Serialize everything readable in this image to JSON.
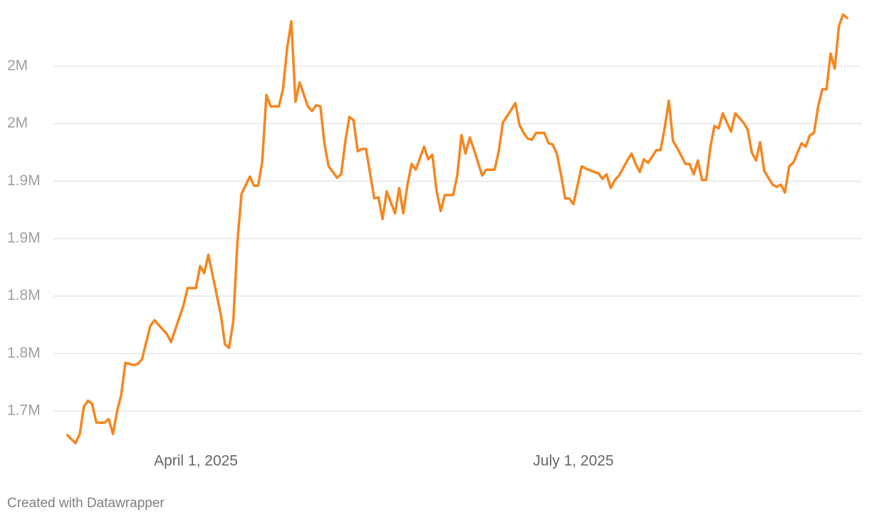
{
  "chart_data": {
    "type": "line",
    "color": "#f6861f",
    "grid": true,
    "credit": "Created with Datawrapper",
    "xlim": [
      "2025-03-01",
      "2025-09-05"
    ],
    "xticks": [
      {
        "value": "2025-04-01",
        "label": "April 1, 2025"
      },
      {
        "value": "2025-07-01",
        "label": "July 1, 2025"
      }
    ],
    "ylim": [
      1665000,
      2050000
    ],
    "yticks": [
      {
        "value": 1700000,
        "label": "1.7M"
      },
      {
        "value": 1750000,
        "label": "1.8M"
      },
      {
        "value": 1800000,
        "label": "1.8M"
      },
      {
        "value": 1850000,
        "label": "1.9M"
      },
      {
        "value": 1900000,
        "label": "1.9M"
      },
      {
        "value": 1950000,
        "label": "2M"
      },
      {
        "value": 2000000,
        "label": "2M"
      }
    ],
    "x": [
      "2025-03-01",
      "2025-03-03",
      "2025-03-04",
      "2025-03-05",
      "2025-03-06",
      "2025-03-07",
      "2025-03-08",
      "2025-03-10",
      "2025-03-11",
      "2025-03-12",
      "2025-03-13",
      "2025-03-14",
      "2025-03-15",
      "2025-03-17",
      "2025-03-18",
      "2025-03-19",
      "2025-03-21",
      "2025-03-22",
      "2025-03-25",
      "2025-03-26",
      "2025-03-29",
      "2025-03-30",
      "2025-04-01",
      "2025-04-02",
      "2025-04-03",
      "2025-04-04",
      "2025-04-07",
      "2025-04-08",
      "2025-04-09",
      "2025-04-10",
      "2025-04-11",
      "2025-04-12",
      "2025-04-14",
      "2025-04-15",
      "2025-04-16",
      "2025-04-17",
      "2025-04-18",
      "2025-04-19",
      "2025-04-21",
      "2025-04-22",
      "2025-04-23",
      "2025-04-24",
      "2025-04-25",
      "2025-04-26",
      "2025-04-28",
      "2025-04-29",
      "2025-04-30",
      "2025-05-01",
      "2025-05-02",
      "2025-05-03",
      "2025-05-05",
      "2025-05-06",
      "2025-05-07",
      "2025-05-08",
      "2025-05-09",
      "2025-05-10",
      "2025-05-11",
      "2025-05-12",
      "2025-05-14",
      "2025-05-15",
      "2025-05-16",
      "2025-05-17",
      "2025-05-19",
      "2025-05-20",
      "2025-05-21",
      "2025-05-22",
      "2025-05-23",
      "2025-05-24",
      "2025-05-26",
      "2025-05-27",
      "2025-05-28",
      "2025-05-29",
      "2025-05-30",
      "2025-05-31",
      "2025-06-02",
      "2025-06-03",
      "2025-06-04",
      "2025-06-05",
      "2025-06-06",
      "2025-06-07",
      "2025-06-09",
      "2025-06-10",
      "2025-06-12",
      "2025-06-13",
      "2025-06-14",
      "2025-06-16",
      "2025-06-17",
      "2025-06-18",
      "2025-06-19",
      "2025-06-20",
      "2025-06-21",
      "2025-06-22",
      "2025-06-24",
      "2025-06-25",
      "2025-06-26",
      "2025-06-27",
      "2025-06-28",
      "2025-06-29",
      "2025-06-30",
      "2025-07-01",
      "2025-07-03",
      "2025-07-04",
      "2025-07-06",
      "2025-07-07",
      "2025-07-08",
      "2025-07-09",
      "2025-07-10",
      "2025-07-11",
      "2025-07-12",
      "2025-07-14",
      "2025-07-15",
      "2025-07-16",
      "2025-07-17",
      "2025-07-18",
      "2025-07-19",
      "2025-07-21",
      "2025-07-22",
      "2025-07-23",
      "2025-07-24",
      "2025-07-25",
      "2025-07-26",
      "2025-07-28",
      "2025-07-29",
      "2025-07-30",
      "2025-07-31",
      "2025-08-01",
      "2025-08-02",
      "2025-08-03",
      "2025-08-04",
      "2025-08-05",
      "2025-08-06",
      "2025-08-08",
      "2025-08-09",
      "2025-08-11",
      "2025-08-12",
      "2025-08-13",
      "2025-08-14",
      "2025-08-15",
      "2025-08-16",
      "2025-08-18",
      "2025-08-19",
      "2025-08-20",
      "2025-08-21",
      "2025-08-22",
      "2025-08-23",
      "2025-08-25",
      "2025-08-26",
      "2025-08-27",
      "2025-08-28",
      "2025-08-29",
      "2025-08-30",
      "2025-08-31",
      "2025-09-01",
      "2025-09-02",
      "2025-09-03",
      "2025-09-04",
      "2025-09-05"
    ],
    "values": [
      1679000,
      1672000,
      1680000,
      1704000,
      1709000,
      1706000,
      1690000,
      1690000,
      1693000,
      1680000,
      1700000,
      1714000,
      1742000,
      1740000,
      1741000,
      1745000,
      1774000,
      1779000,
      1767000,
      1760000,
      1792000,
      1807000,
      1807000,
      1826000,
      1820000,
      1836000,
      1784000,
      1758000,
      1755000,
      1778000,
      1847000,
      1889000,
      1904000,
      1896000,
      1896000,
      1917000,
      1975000,
      1965000,
      1965000,
      1980000,
      2016000,
      2039000,
      1969000,
      1986000,
      1965000,
      1961000,
      1966000,
      1965000,
      1932000,
      1913000,
      1903000,
      1906000,
      1934000,
      1956000,
      1953000,
      1926000,
      1928000,
      1928000,
      1885000,
      1886000,
      1867000,
      1891000,
      1872000,
      1894000,
      1872000,
      1897000,
      1915000,
      1910000,
      1930000,
      1919000,
      1923000,
      1892000,
      1874000,
      1888000,
      1888000,
      1905000,
      1940000,
      1924000,
      1938000,
      1928000,
      1905000,
      1910000,
      1910000,
      1926000,
      1951000,
      1962000,
      1968000,
      1949000,
      1942000,
      1937000,
      1936000,
      1942000,
      1942000,
      1933000,
      1932000,
      1924000,
      1906000,
      1885000,
      1885000,
      1880000,
      1913000,
      1911000,
      1908000,
      1907000,
      1902000,
      1906000,
      1894000,
      1901000,
      1905000,
      1918000,
      1924000,
      1915000,
      1908000,
      1919000,
      1916000,
      1927000,
      1927000,
      1946000,
      1970000,
      1935000,
      1929000,
      1915000,
      1915000,
      1906000,
      1918000,
      1901000,
      1901000,
      1929000,
      1948000,
      1946000,
      1959000,
      1943000,
      1959000,
      1951000,
      1945000,
      1925000,
      1918000,
      1934000,
      1909000,
      1897000,
      1895000,
      1897000,
      1890000,
      1913000,
      1916000,
      1933000,
      1930000,
      1940000,
      1942000,
      1965000,
      1980000,
      1980000,
      2011000,
      1998000,
      2035000,
      2045000,
      2042000
    ]
  }
}
